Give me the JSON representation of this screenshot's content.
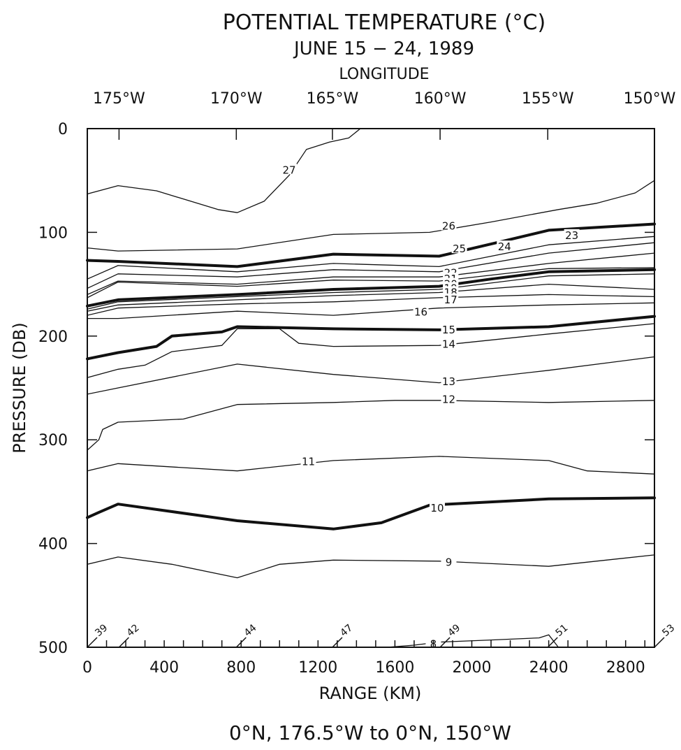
{
  "chart_data": {
    "type": "line",
    "title": "POTENTIAL TEMPERATURE (°C)",
    "subtitle": "JUNE 15 − 24, 1989",
    "top_axis_label": "LONGITUDE",
    "top_ticks": [
      {
        "range": 165,
        "label": "175°W"
      },
      {
        "range": 775,
        "label": "170°W"
      },
      {
        "range": 1275,
        "label": "165°W"
      },
      {
        "range": 1835,
        "label": "160°W"
      },
      {
        "range": 2395,
        "label": "155°W"
      },
      {
        "range": 2950,
        "label": "150°W"
      }
    ],
    "xlabel": "RANGE (KM)",
    "ylabel": "PRESSURE (DB)",
    "footer": "0°N, 176.5°W to 0°N, 150°W",
    "xlim": [
      0,
      2950
    ],
    "ylim": [
      0,
      500
    ],
    "y_inverted": true,
    "x_ticks": [
      0,
      400,
      800,
      1200,
      1600,
      2000,
      2400,
      2800
    ],
    "y_ticks": [
      0,
      100,
      200,
      300,
      400,
      500
    ],
    "contours": [
      {
        "name": "27",
        "label": "27",
        "bold": false,
        "label_at": [
          1050,
          40
        ],
        "points": [
          [
            0,
            63
          ],
          [
            160,
            55
          ],
          [
            360,
            60
          ],
          [
            680,
            78
          ],
          [
            780,
            81
          ],
          [
            920,
            70
          ],
          [
            1050,
            45
          ],
          [
            1140,
            20
          ],
          [
            1260,
            13
          ],
          [
            1360,
            9
          ],
          [
            1420,
            0
          ]
        ]
      },
      {
        "name": "26",
        "label": "26",
        "bold": false,
        "label_at": [
          1880,
          94
        ],
        "points": [
          [
            0,
            115
          ],
          [
            160,
            118
          ],
          [
            780,
            116
          ],
          [
            1280,
            102
          ],
          [
            1780,
            100
          ],
          [
            2100,
            90
          ],
          [
            2450,
            78
          ],
          [
            2650,
            72
          ],
          [
            2850,
            62
          ],
          [
            2950,
            50
          ]
        ]
      },
      {
        "name": "25",
        "label": "25",
        "bold": true,
        "label_at": [
          1935,
          116
        ],
        "points": [
          [
            0,
            127
          ],
          [
            160,
            128
          ],
          [
            780,
            133
          ],
          [
            1280,
            121
          ],
          [
            1830,
            123
          ],
          [
            2150,
            109
          ],
          [
            2400,
            98
          ],
          [
            2950,
            92
          ]
        ]
      },
      {
        "name": "24",
        "label": "24",
        "bold": false,
        "label_at": [
          2170,
          114
        ],
        "points": [
          [
            0,
            145
          ],
          [
            160,
            132
          ],
          [
            780,
            138
          ],
          [
            1280,
            130
          ],
          [
            1830,
            133
          ],
          [
            2400,
            112
          ],
          [
            2950,
            104
          ]
        ]
      },
      {
        "name": "23",
        "label": "23",
        "bold": false,
        "label_at": [
          2520,
          103
        ],
        "points": [
          [
            0,
            154
          ],
          [
            160,
            140
          ],
          [
            780,
            143
          ],
          [
            1280,
            136
          ],
          [
            1830,
            138
          ],
          [
            2400,
            120
          ],
          [
            2950,
            110
          ]
        ]
      },
      {
        "name": "22",
        "label": "22",
        "bold": false,
        "label_at": [
          1890,
          139
        ],
        "points": [
          [
            0,
            160
          ],
          [
            160,
            147
          ],
          [
            780,
            150
          ],
          [
            1280,
            143
          ],
          [
            1830,
            143
          ],
          [
            2400,
            130
          ],
          [
            2950,
            120
          ]
        ]
      },
      {
        "name": "21",
        "label": "21",
        "bold": false,
        "label_at": [
          1890,
          145
        ],
        "points": [
          [
            0,
            163
          ],
          [
            160,
            148
          ],
          [
            780,
            152
          ],
          [
            1280,
            146
          ],
          [
            1830,
            147
          ],
          [
            2400,
            135
          ],
          [
            2950,
            134
          ]
        ]
      },
      {
        "name": "20",
        "label": "20",
        "bold": true,
        "label_at": [
          1890,
          150
        ],
        "points": [
          [
            0,
            171
          ],
          [
            160,
            165
          ],
          [
            780,
            160
          ],
          [
            1280,
            155
          ],
          [
            1830,
            152
          ],
          [
            2100,
            145
          ],
          [
            2400,
            138
          ],
          [
            2950,
            136
          ]
        ]
      },
      {
        "name": "19",
        "label": "19",
        "bold": false,
        "label_at": [
          1890,
          154
        ],
        "points": [
          [
            0,
            174
          ],
          [
            160,
            167
          ],
          [
            780,
            162
          ],
          [
            1280,
            158
          ],
          [
            1830,
            155
          ],
          [
            2400,
            142
          ],
          [
            2950,
            140
          ]
        ]
      },
      {
        "name": "18",
        "label": "18",
        "bold": false,
        "label_at": [
          1890,
          158
        ],
        "points": [
          [
            0,
            176
          ],
          [
            160,
            170
          ],
          [
            780,
            165
          ],
          [
            1280,
            161
          ],
          [
            1830,
            158
          ],
          [
            2400,
            150
          ],
          [
            2950,
            155
          ]
        ]
      },
      {
        "name": "17",
        "label": "17",
        "bold": false,
        "label_at": [
          1890,
          165
        ],
        "points": [
          [
            0,
            180
          ],
          [
            160,
            173
          ],
          [
            780,
            169
          ],
          [
            1280,
            167
          ],
          [
            1830,
            163
          ],
          [
            2400,
            160
          ],
          [
            2950,
            162
          ]
        ]
      },
      {
        "name": "16",
        "label": "16",
        "bold": false,
        "label_at": [
          1735,
          177
        ],
        "points": [
          [
            0,
            183
          ],
          [
            160,
            183
          ],
          [
            780,
            176
          ],
          [
            1280,
            180
          ],
          [
            1830,
            173
          ],
          [
            2400,
            170
          ],
          [
            2950,
            168
          ]
        ]
      },
      {
        "name": "15",
        "label": "15",
        "bold": true,
        "label_at": [
          1880,
          194
        ],
        "points": [
          [
            0,
            222
          ],
          [
            160,
            216
          ],
          [
            360,
            210
          ],
          [
            440,
            200
          ],
          [
            700,
            196
          ],
          [
            780,
            191
          ],
          [
            1280,
            193
          ],
          [
            1830,
            194
          ],
          [
            2400,
            191
          ],
          [
            2950,
            181
          ]
        ]
      },
      {
        "name": "14",
        "label": "14",
        "bold": false,
        "label_at": [
          1880,
          208
        ],
        "points": [
          [
            0,
            240
          ],
          [
            160,
            232
          ],
          [
            300,
            228
          ],
          [
            440,
            215
          ],
          [
            700,
            209
          ],
          [
            780,
            193
          ],
          [
            1000,
            193
          ],
          [
            1100,
            207
          ],
          [
            1280,
            210
          ],
          [
            1830,
            209
          ],
          [
            2400,
            198
          ],
          [
            2950,
            188
          ]
        ]
      },
      {
        "name": "13",
        "label": "13",
        "bold": false,
        "label_at": [
          1880,
          244
        ],
        "points": [
          [
            0,
            256
          ],
          [
            160,
            250
          ],
          [
            780,
            227
          ],
          [
            1280,
            237
          ],
          [
            1830,
            245
          ],
          [
            2400,
            233
          ],
          [
            2950,
            220
          ]
        ]
      },
      {
        "name": "12",
        "label": "12",
        "bold": false,
        "label_at": [
          1880,
          261
        ],
        "points": [
          [
            0,
            310
          ],
          [
            60,
            300
          ],
          [
            80,
            290
          ],
          [
            160,
            283
          ],
          [
            500,
            280
          ],
          [
            780,
            266
          ],
          [
            1280,
            264
          ],
          [
            1600,
            262
          ],
          [
            1830,
            262
          ],
          [
            2400,
            264
          ],
          [
            2950,
            262
          ]
        ]
      },
      {
        "name": "11",
        "label": "11",
        "bold": false,
        "label_at": [
          1150,
          321
        ],
        "points": [
          [
            0,
            330
          ],
          [
            160,
            323
          ],
          [
            780,
            330
          ],
          [
            1280,
            320
          ],
          [
            1830,
            316
          ],
          [
            2400,
            320
          ],
          [
            2600,
            330
          ],
          [
            2950,
            333
          ]
        ]
      },
      {
        "name": "10",
        "label": "10",
        "bold": true,
        "label_at": [
          1820,
          366
        ],
        "points": [
          [
            0,
            375
          ],
          [
            60,
            370
          ],
          [
            160,
            362
          ],
          [
            780,
            378
          ],
          [
            1280,
            386
          ],
          [
            1530,
            380
          ],
          [
            1780,
            363
          ],
          [
            2400,
            357
          ],
          [
            2950,
            356
          ]
        ]
      },
      {
        "name": "9",
        "label": "9",
        "bold": false,
        "label_at": [
          1880,
          418
        ],
        "points": [
          [
            0,
            420
          ],
          [
            160,
            413
          ],
          [
            440,
            420
          ],
          [
            780,
            433
          ],
          [
            1000,
            420
          ],
          [
            1280,
            416
          ],
          [
            1830,
            417
          ],
          [
            2400,
            422
          ],
          [
            2950,
            411
          ]
        ]
      },
      {
        "name": "8",
        "label": "8",
        "bold": false,
        "label_at": [
          1800,
          497
        ],
        "points": [
          [
            1560,
            500
          ],
          [
            1700,
            498
          ],
          [
            1830,
            495
          ],
          [
            2100,
            493
          ],
          [
            2350,
            491
          ],
          [
            2400,
            488
          ],
          [
            2450,
            500
          ]
        ]
      }
    ],
    "stations": [
      {
        "label": "39",
        "range": 0
      },
      {
        "label": "42",
        "range": 165
      },
      {
        "label": "44",
        "range": 775
      },
      {
        "label": "47",
        "range": 1275
      },
      {
        "label": "49",
        "range": 1835
      },
      {
        "label": "51",
        "range": 2395
      },
      {
        "label": "53",
        "range": 2950
      }
    ]
  }
}
